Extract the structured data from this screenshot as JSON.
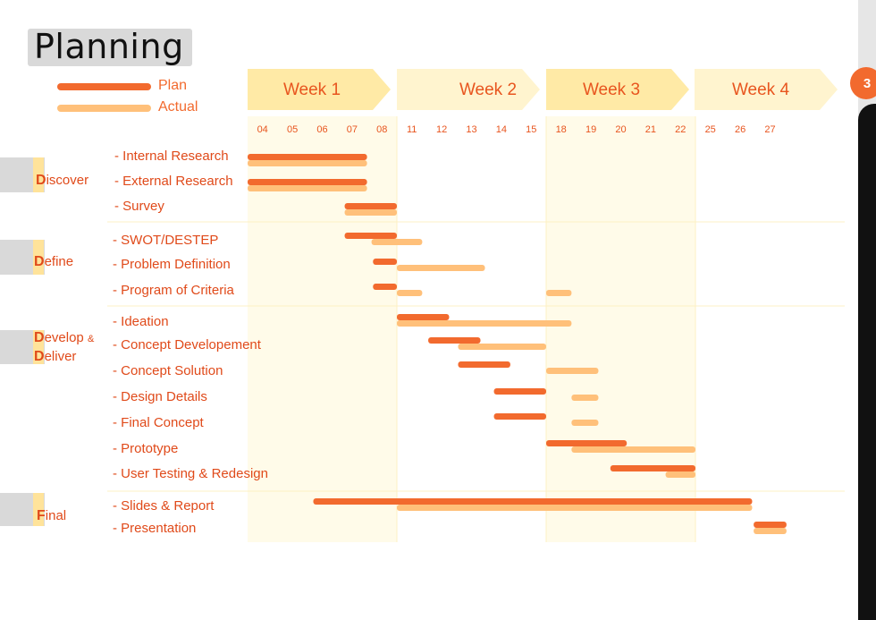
{
  "title": "Planning",
  "page_number": "3",
  "legend": [
    {
      "label": "Plan",
      "color": "#f26a2e"
    },
    {
      "label": "Actual",
      "color": "#ffc07a"
    }
  ],
  "weeks": [
    "Week 1",
    "Week 2",
    "Week 3",
    "Week 4"
  ],
  "days": [
    "04",
    "05",
    "06",
    "07",
    "08",
    "11",
    "12",
    "13",
    "14",
    "15",
    "18",
    "19",
    "20",
    "21",
    "22",
    "25",
    "26",
    "27"
  ],
  "phases": [
    {
      "initial": "D",
      "rest": "iscover"
    },
    {
      "initial": "D",
      "rest": "efine"
    },
    {
      "initial": "D",
      "rest": "evelop",
      "amp": "&",
      "initial2": "D",
      "rest2": "eliver"
    },
    {
      "initial": "F",
      "rest": "inal"
    }
  ],
  "tasks": [
    "- Internal Research",
    "- External Research",
    "- Survey",
    "- SWOT/DESTEP",
    "- Problem Definition",
    "- Program of Criteria",
    "- Ideation",
    "- Concept Developement",
    "- Concept Solution",
    "- Design Details",
    "- Final Concept",
    "- Prototype",
    "- User Testing & Redesign",
    "- Slides & Report",
    "- Presentation"
  ],
  "chart_data": {
    "type": "gantt",
    "title": "Planning",
    "x_axis": "working days (04–27)",
    "series": [
      {
        "name": "Plan",
        "color": "#f26a2e"
      },
      {
        "name": "Actual",
        "color": "#ffc07a"
      }
    ],
    "bars": [
      {
        "task": "- Internal Research",
        "plan": [
          0,
          4
        ],
        "actual": [
          0,
          4
        ]
      },
      {
        "task": "- External Research",
        "plan": [
          0,
          4
        ],
        "actual": [
          0,
          4
        ]
      },
      {
        "task": "- Survey",
        "plan": [
          3.25,
          5
        ],
        "actual": [
          3.25,
          5
        ]
      },
      {
        "task": "- SWOT/DESTEP",
        "plan": [
          3.25,
          5
        ],
        "actual": [
          4.15,
          5.85
        ]
      },
      {
        "task": "- Problem Definition",
        "plan": [
          4.2,
          5
        ],
        "actual": [
          5,
          7.95
        ]
      },
      {
        "task": "- Program of Criteria",
        "plan": [
          4.2,
          5
        ],
        "actual": [
          [
            5,
            5.85
          ],
          [
            10,
            10.85
          ]
        ]
      },
      {
        "task": "- Ideation",
        "plan": [
          5,
          6.75
        ],
        "actual": [
          5,
          10.85
        ]
      },
      {
        "task": "- Concept Developement",
        "plan": [
          6.05,
          7.8
        ],
        "actual": [
          7.05,
          10
        ]
      },
      {
        "task": "- Concept Solution",
        "plan": [
          7.05,
          8.8
        ],
        "actual": [
          10,
          11.75
        ]
      },
      {
        "task": "- Design Details",
        "plan": [
          8.25,
          10
        ],
        "actual": [
          10.85,
          11.75
        ]
      },
      {
        "task": "- Final Concept",
        "plan": [
          8.25,
          10
        ],
        "actual": [
          10.85,
          11.75
        ]
      },
      {
        "task": "- Prototype",
        "plan": [
          10,
          12.7
        ],
        "actual": [
          10.85,
          15
        ]
      },
      {
        "task": "- User Testing & Redesign",
        "plan": [
          12.15,
          15
        ],
        "actual": [
          14,
          15
        ]
      },
      {
        "task": "- Slides & Report",
        "plan": [
          2.2,
          16.9
        ],
        "actual": [
          5,
          16.9
        ]
      },
      {
        "task": "- Presentation",
        "plan": [
          16.95,
          18.05
        ],
        "actual": [
          16.95,
          18.05
        ]
      }
    ]
  }
}
